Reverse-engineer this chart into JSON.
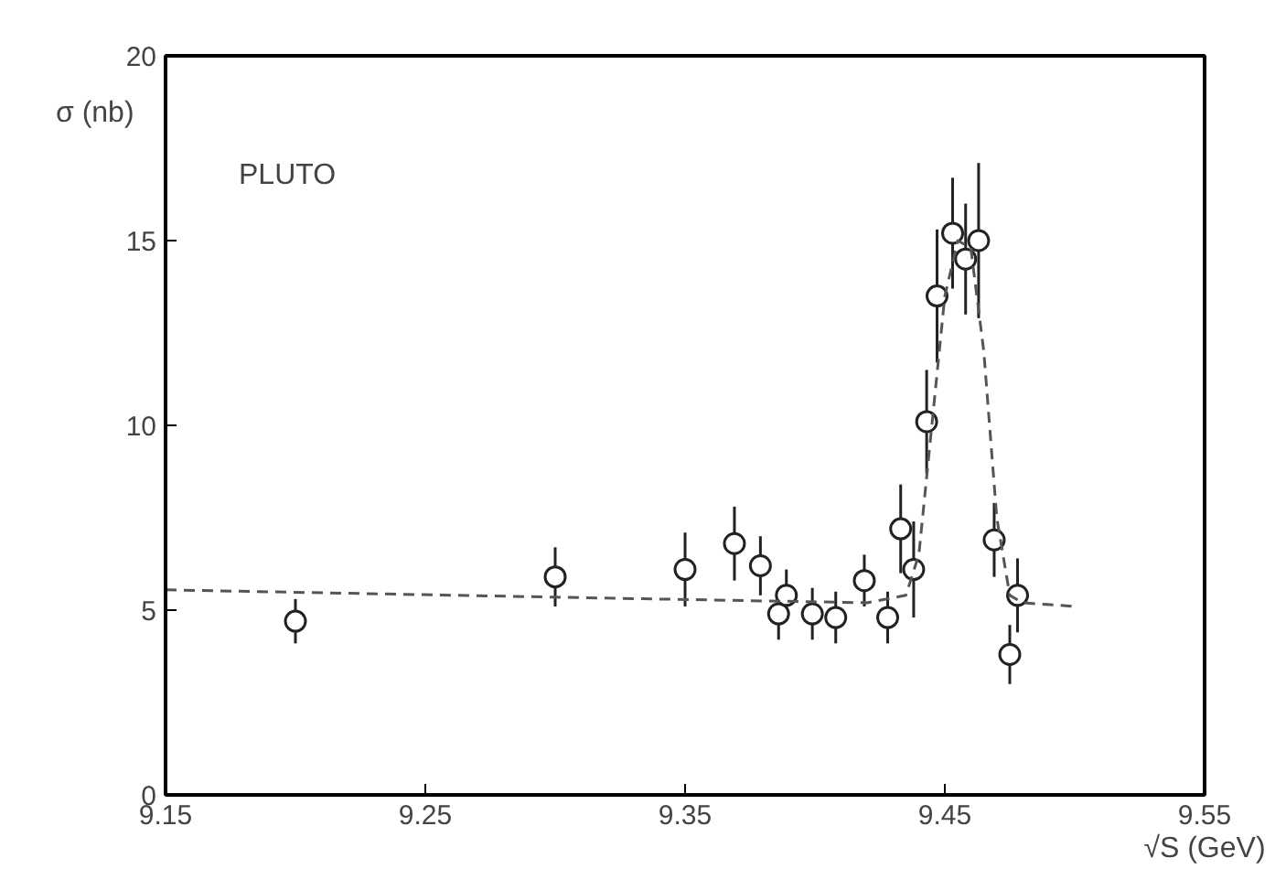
{
  "chart_data": {
    "type": "scatter",
    "xlabel": "√S (GeV)",
    "ylabel": "σ (nb)",
    "annotations": [
      "PLUTO"
    ],
    "xlim": [
      9.15,
      9.55
    ],
    "ylim": [
      0,
      20
    ],
    "xticks": [
      9.15,
      9.25,
      9.35,
      9.45,
      9.55
    ],
    "yticks": [
      0,
      5,
      10,
      15,
      20
    ],
    "marker": "circle",
    "grid": false,
    "series": [
      {
        "color": "#222222",
        "x": [
          9.2,
          9.3,
          9.35,
          9.369,
          9.379,
          9.386,
          9.389,
          9.399,
          9.408,
          9.419,
          9.428,
          9.433,
          9.438,
          9.443,
          9.447,
          9.453,
          9.458,
          9.463,
          9.469,
          9.475,
          9.478
        ],
        "values": [
          4.7,
          5.9,
          6.1,
          6.8,
          6.2,
          4.9,
          5.4,
          4.9,
          4.8,
          5.8,
          4.8,
          7.2,
          6.1,
          10.1,
          13.5,
          15.2,
          14.5,
          15.0,
          6.9,
          3.8,
          5.4
        ],
        "errors": [
          0.6,
          0.8,
          1.0,
          1.0,
          0.8,
          0.7,
          0.7,
          0.7,
          0.7,
          0.7,
          0.7,
          1.2,
          1.3,
          1.4,
          1.8,
          1.5,
          1.5,
          2.1,
          1.0,
          0.8,
          1.0
        ]
      },
      {
        "type": "line",
        "color": "#555555",
        "line_style": "dashed",
        "marker": "none",
        "x": [
          9.15,
          9.3,
          9.38,
          9.42,
          9.435,
          9.44,
          9.445,
          9.45,
          9.455,
          9.46,
          9.465,
          9.47,
          9.475,
          9.48,
          9.5
        ],
        "values": [
          5.55,
          5.35,
          5.25,
          5.2,
          5.4,
          6.5,
          10.0,
          13.5,
          15.0,
          14.8,
          12.0,
          7.5,
          5.4,
          5.2,
          5.1
        ]
      }
    ]
  }
}
